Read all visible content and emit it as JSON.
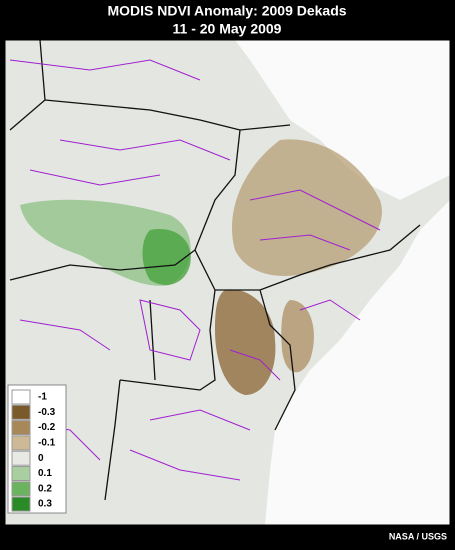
{
  "title": "MODIS NDVI Anomaly: 2009 Dekads",
  "subtitle": "11 - 20 May 2009",
  "credit": "NASA / USGS",
  "legend": [
    {
      "value": -1,
      "color": "#ffffff"
    },
    {
      "value": -0.3,
      "color": "#7a5a2a"
    },
    {
      "value": -0.2,
      "color": "#a88858"
    },
    {
      "value": -0.1,
      "color": "#cdb995"
    },
    {
      "value": 0,
      "color": "#e8e8e4"
    },
    {
      "value": 0.1,
      "color": "#a9cfa0"
    },
    {
      "value": 0.2,
      "color": "#6cb35f"
    },
    {
      "value": 0.3,
      "color": "#2a8a25"
    }
  ]
}
